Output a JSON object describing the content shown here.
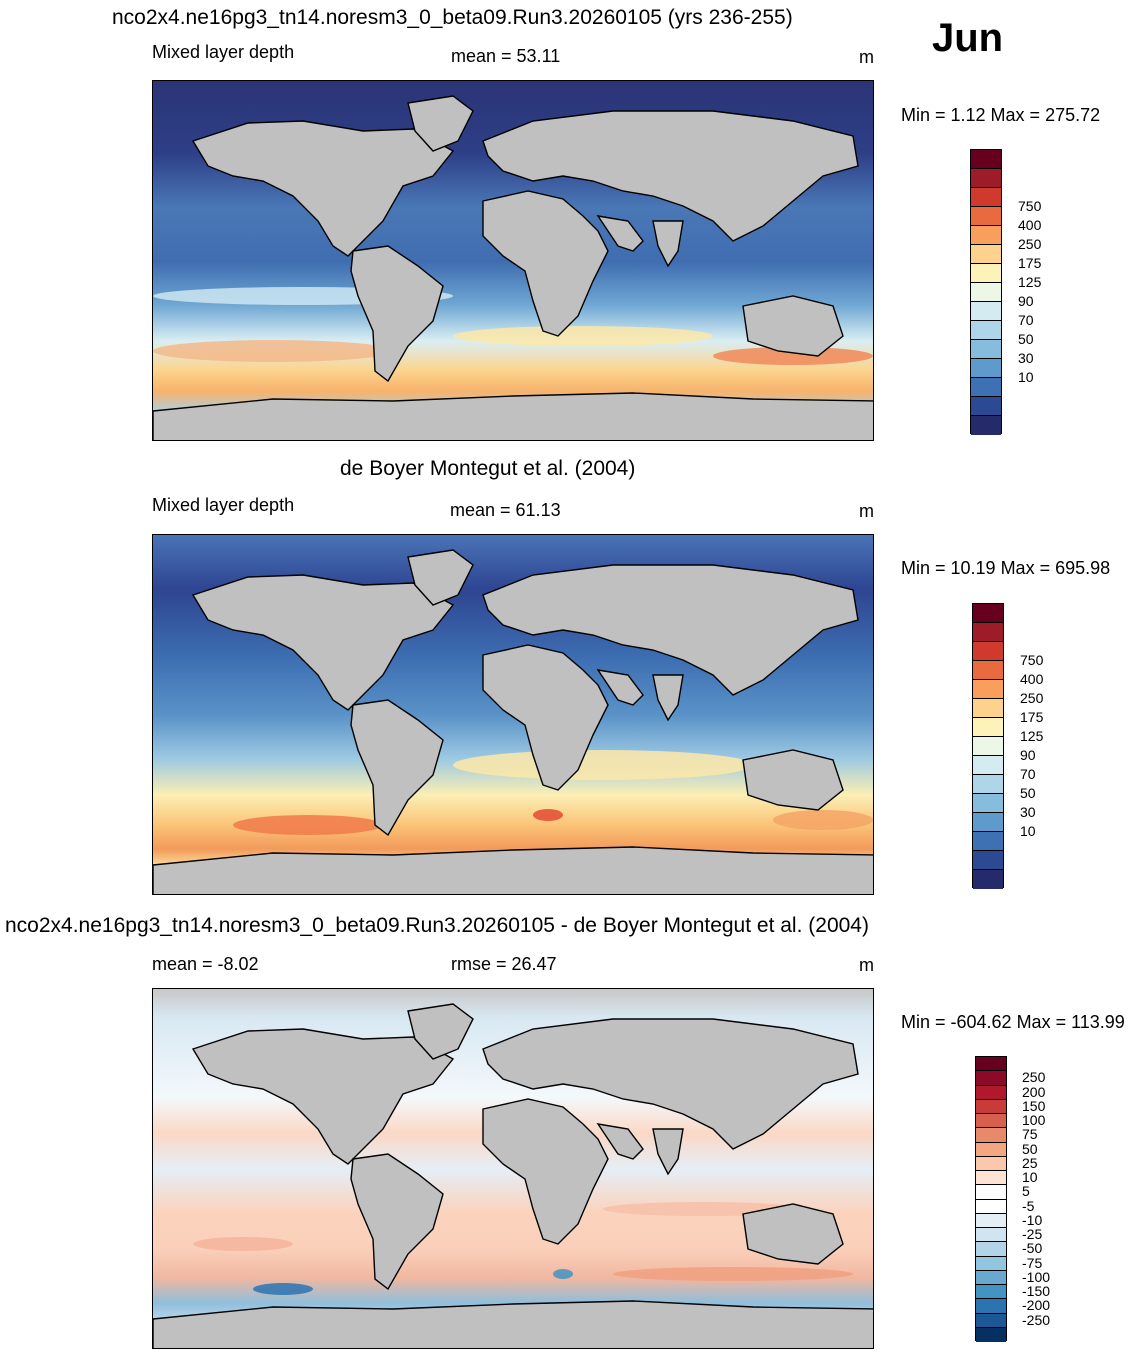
{
  "month": "Jun",
  "units": "m",
  "panels": [
    {
      "title": "nco2x4.ne16pg3_tn14.noresm3_0_beta09.Run3.20260105 (yrs 236-255)",
      "subtitle": "Mixed layer depth",
      "stat": "mean =  53.11",
      "units": "m",
      "minmax": "Min =   1.12 Max = 275.72",
      "colorbar": {
        "labels": [
          "750",
          "400",
          "250",
          "175",
          "125",
          "90",
          "70",
          "50",
          "30",
          "10"
        ],
        "colors": [
          "#67001f",
          "#9e1b2a",
          "#cf3a2d",
          "#ea6a40",
          "#f8a05b",
          "#fdd28c",
          "#fdf2b7",
          "#edf7e8",
          "#d4ebf2",
          "#aed5e8",
          "#86bcdc",
          "#5e9bcc",
          "#3e71b3",
          "#2c4a94",
          "#252a6b"
        ]
      }
    },
    {
      "title": "de Boyer Montegut et al. (2004)",
      "subtitle": "Mixed layer depth",
      "stat": "mean =  61.13",
      "units": "m",
      "minmax": "Min =  10.19 Max = 695.98",
      "colorbar": {
        "labels": [
          "750",
          "400",
          "250",
          "175",
          "125",
          "90",
          "70",
          "50",
          "30",
          "10"
        ],
        "colors": [
          "#67001f",
          "#9e1b2a",
          "#cf3a2d",
          "#ea6a40",
          "#f8a05b",
          "#fdd28c",
          "#fdf2b7",
          "#edf7e8",
          "#d4ebf2",
          "#aed5e8",
          "#86bcdc",
          "#5e9bcc",
          "#3e71b3",
          "#2c4a94",
          "#252a6b"
        ]
      }
    },
    {
      "title": "nco2x4.ne16pg3_tn14.noresm3_0_beta09.Run3.20260105 - de Boyer Montegut et al. (2004)",
      "subtitle": "mean =  -8.02",
      "stat": "rmse =  26.47",
      "units": "m",
      "minmax": "Min = -604.62 Max = 113.99",
      "colorbar": {
        "labels": [
          "250",
          "200",
          "150",
          "100",
          "75",
          "50",
          "25",
          "10",
          "5",
          "-5",
          "-10",
          "-25",
          "-50",
          "-75",
          "-100",
          "-150",
          "-200",
          "-250"
        ],
        "colors": [
          "#67001f",
          "#8c0a28",
          "#b2182b",
          "#c93a3a",
          "#d6604d",
          "#e8896c",
          "#f4a582",
          "#fbc8ad",
          "#fde3d3",
          "#ffffff",
          "#ffffff",
          "#e4eef5",
          "#d1e5f0",
          "#b3d3e8",
          "#92c5de",
          "#6aa8d0",
          "#4393c3",
          "#2c73b2",
          "#1e5796",
          "#053061"
        ]
      }
    }
  ]
}
